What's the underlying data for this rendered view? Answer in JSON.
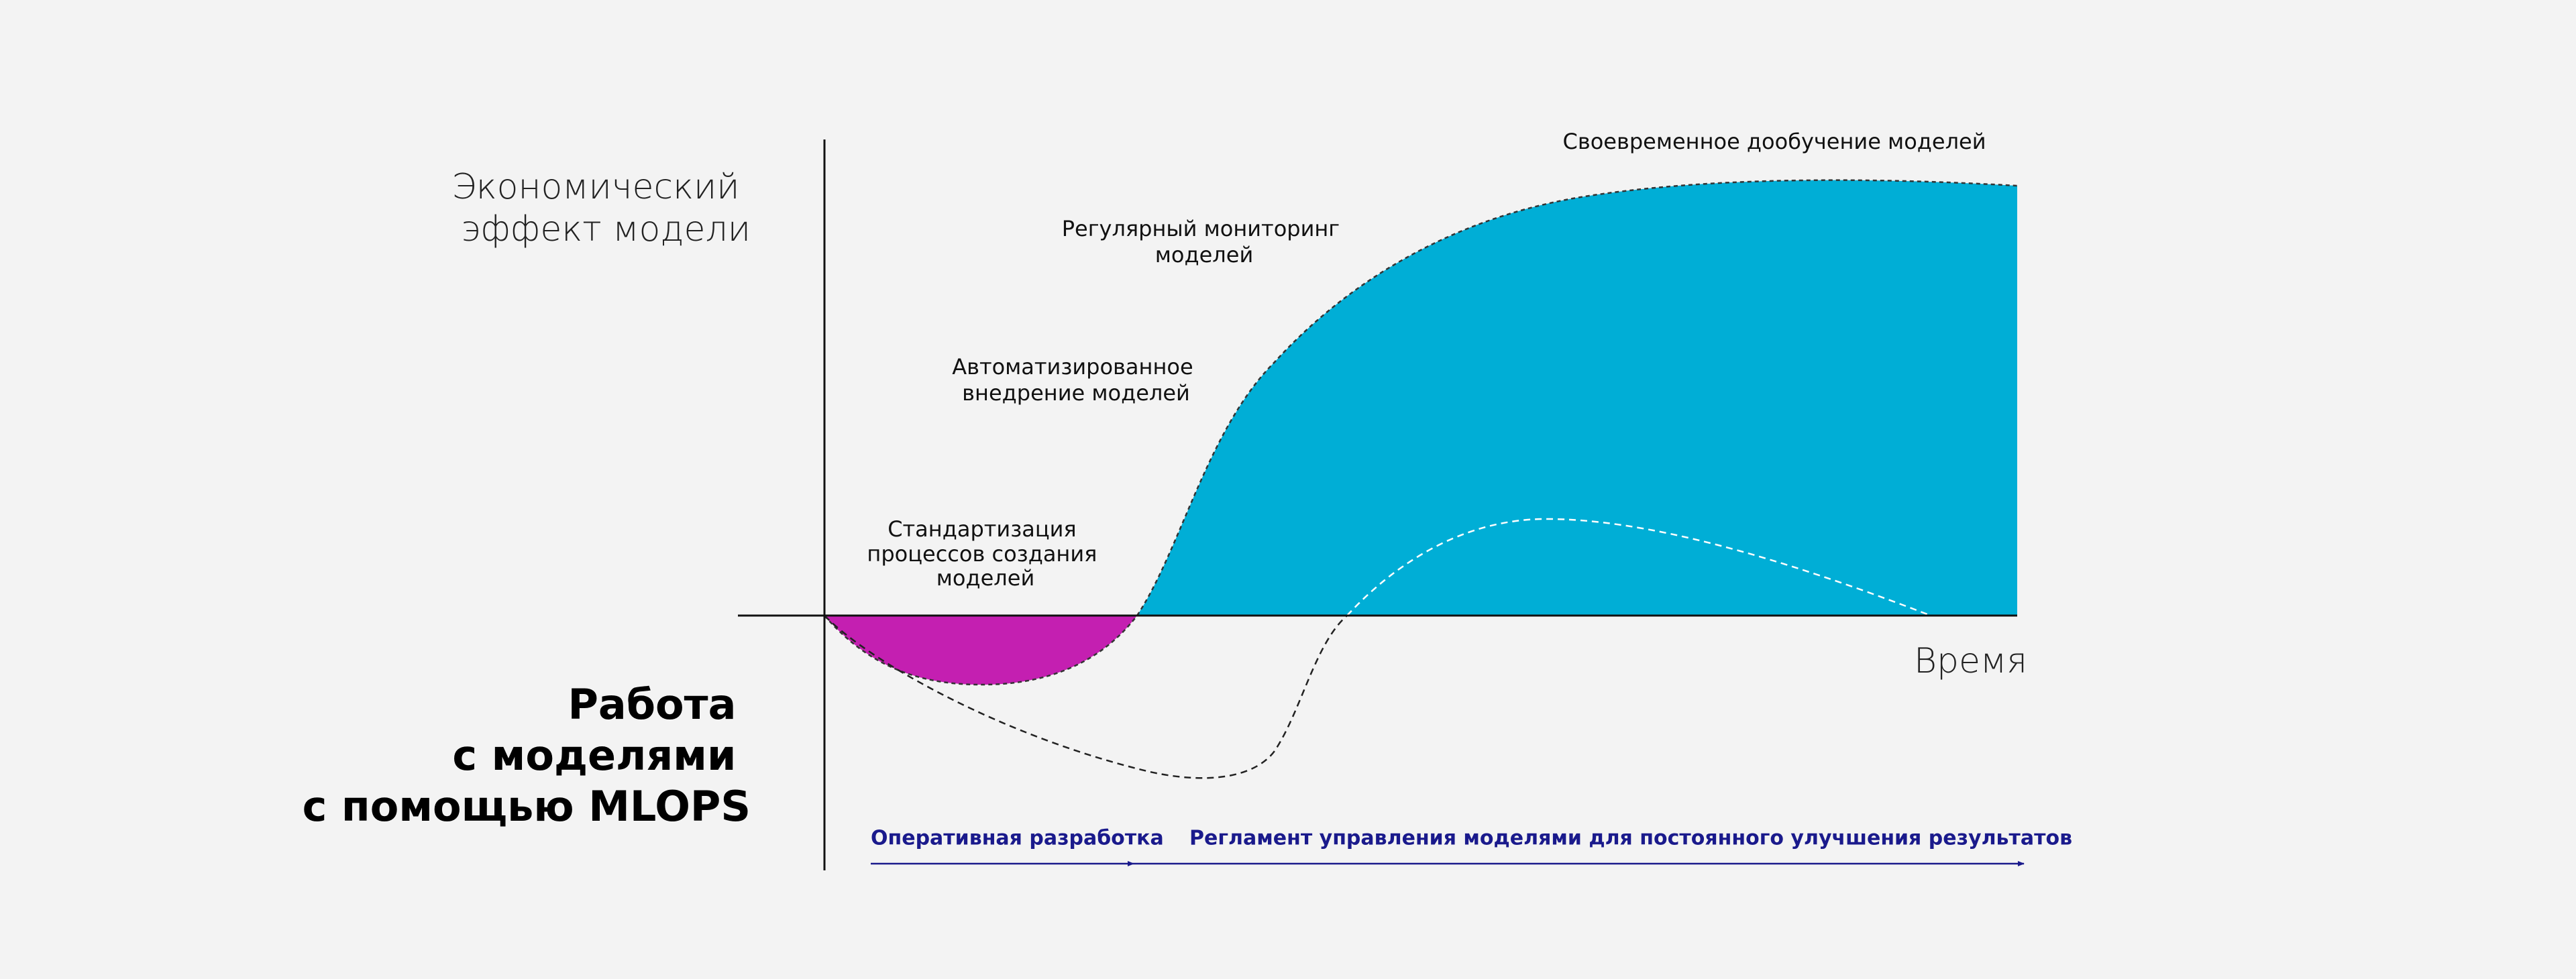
{
  "y_axis_label": [
    "Экономический",
    "эффект модели"
  ],
  "x_axis_label": "Время",
  "heading": [
    "Работа",
    "с моделями",
    "с помощью MLOPS"
  ],
  "stages": [
    {
      "label": [
        "Стандартизация",
        "процессов  создания",
        "моделей"
      ]
    },
    {
      "label": [
        "Автоматизированное",
        "внедрение моделей"
      ]
    },
    {
      "label": [
        "Регулярный мониторинг",
        "моделей"
      ]
    },
    {
      "label": [
        "Своевременное дообучение моделей"
      ]
    }
  ],
  "phases": [
    "Оперативная разработка",
    "Регламент управления моделями для постоянного улучшения результатов"
  ]
}
